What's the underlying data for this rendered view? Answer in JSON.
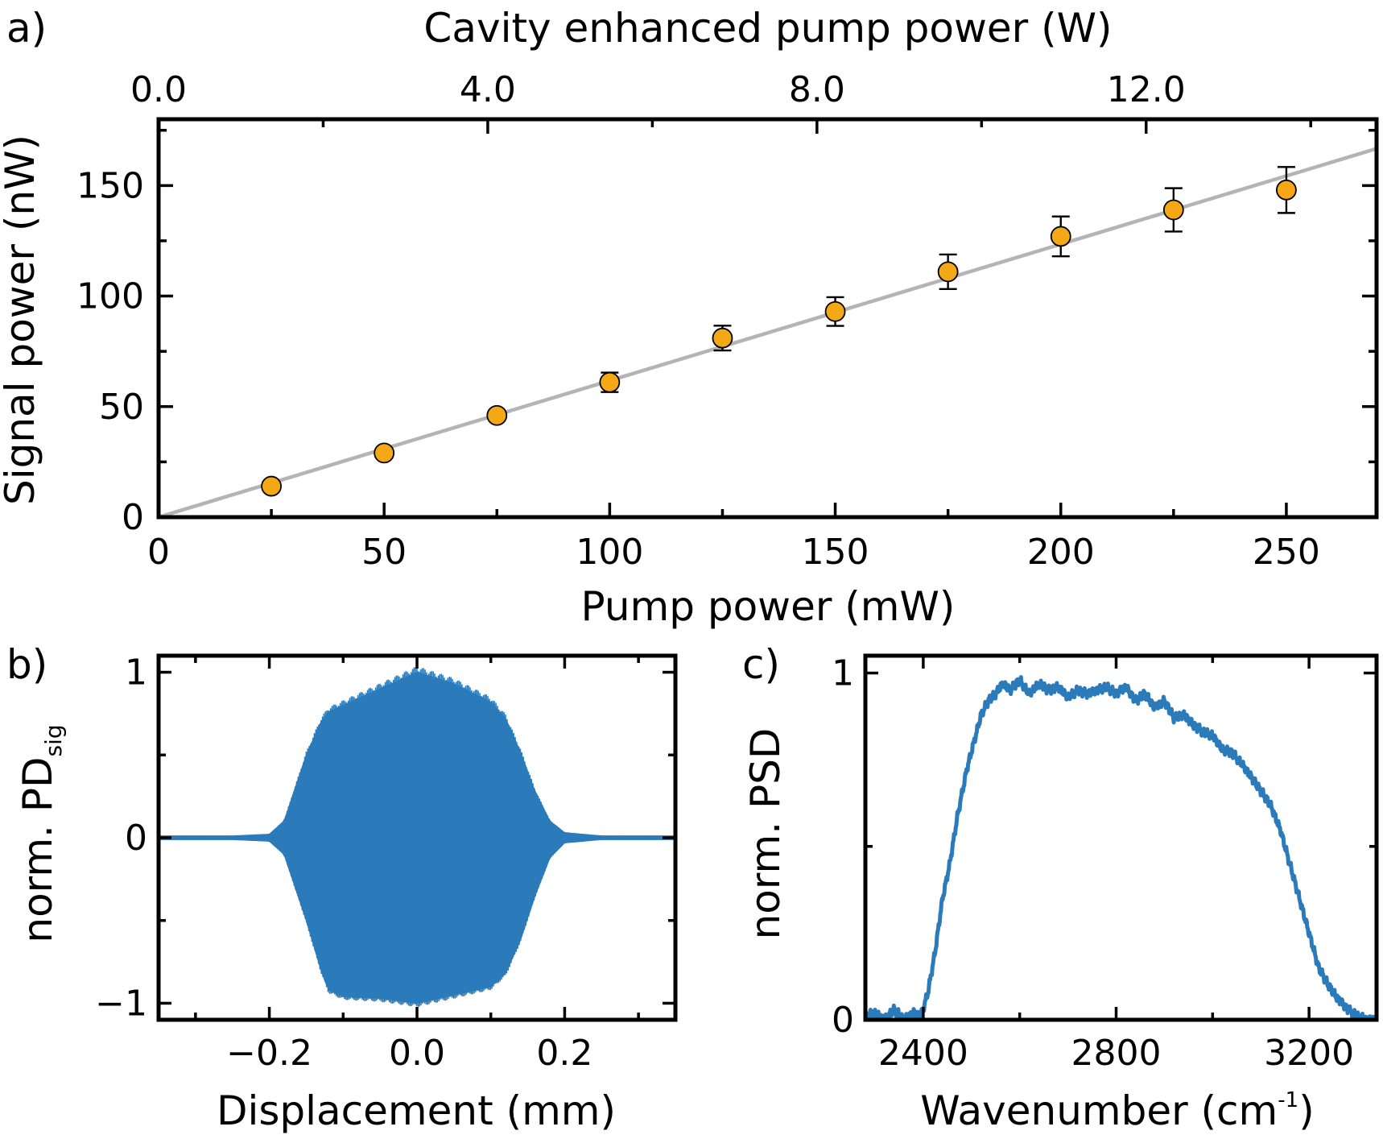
{
  "colors": {
    "marker": "#f5a816",
    "fit": "#b4b4b4",
    "trace": "#2b7bba",
    "axis": "#000000"
  },
  "chart_data": [
    {
      "panel": "a)",
      "type": "scatter",
      "title": "",
      "xlabel": "Pump power (mW)",
      "ylabel": "Signal power (nW)",
      "top_xlabel": "Cavity enhanced pump power (W)",
      "xlim": [
        0,
        270
      ],
      "ylim": [
        0,
        180
      ],
      "top_xlim": [
        0,
        14.8
      ],
      "x_ticks": [
        0,
        50,
        100,
        150,
        200,
        250
      ],
      "x_tick_labels": [
        "0",
        "50",
        "100",
        "150",
        "200",
        "250"
      ],
      "y_ticks": [
        0,
        50,
        100,
        150
      ],
      "y_tick_labels": [
        "0",
        "50",
        "100",
        "150"
      ],
      "top_ticks": [
        0,
        4,
        8,
        12
      ],
      "top_tick_labels": [
        "0.0",
        "4.0",
        "8.0",
        "12.0"
      ],
      "minor_x_ticks": [
        25,
        75,
        125,
        175,
        225
      ],
      "minor_y_ticks": [
        25,
        75,
        125,
        175
      ],
      "minor_top_ticks": [
        2,
        6,
        10,
        14
      ],
      "series": [
        {
          "name": "measured signal power",
          "x": [
            25,
            50,
            75,
            100,
            125,
            150,
            175,
            200,
            225,
            250
          ],
          "y": [
            14,
            29,
            46,
            61,
            81,
            93,
            111,
            127,
            139,
            148
          ],
          "yerr": [
            0,
            0,
            0,
            4.4,
            5.6,
            6.5,
            7.8,
            9.0,
            9.8,
            10.4
          ]
        },
        {
          "name": "linear fit",
          "type": "line",
          "x": [
            0,
            270
          ],
          "y": [
            0,
            166.7
          ]
        }
      ]
    },
    {
      "panel": "b)",
      "type": "line",
      "title": "",
      "xlabel": "Displacement (mm)",
      "ylabel_main": "norm. PD",
      "ylabel_sub": "sig",
      "xlim": [
        -0.35,
        0.35
      ],
      "ylim": [
        -1.1,
        1.1
      ],
      "x_ticks": [
        -0.2,
        0.0,
        0.2
      ],
      "x_tick_labels": [
        "−0.2",
        "0.0",
        "0.2"
      ],
      "y_ticks": [
        -1,
        0,
        1
      ],
      "y_tick_labels": [
        "−1",
        "0",
        "1"
      ],
      "minor_x_ticks": [
        -0.3,
        -0.1,
        0.1,
        0.3
      ],
      "minor_y_ticks": [
        -0.5,
        0.5
      ],
      "envelope": {
        "x": [
          -0.35,
          -0.25,
          -0.2,
          -0.18,
          -0.15,
          -0.13,
          -0.12,
          -0.1,
          -0.05,
          0.0,
          0.05,
          0.1,
          0.12,
          0.14,
          0.16,
          0.18,
          0.2,
          0.25,
          0.35
        ],
        "upper": [
          0.01,
          0.01,
          0.02,
          0.1,
          0.5,
          0.7,
          0.76,
          0.8,
          0.9,
          1.0,
          0.93,
          0.82,
          0.72,
          0.52,
          0.28,
          0.1,
          0.03,
          0.01,
          0.01
        ],
        "lower": [
          -0.01,
          -0.01,
          -0.02,
          -0.1,
          -0.5,
          -0.8,
          -0.92,
          -0.96,
          -0.97,
          -1.0,
          -0.95,
          -0.9,
          -0.82,
          -0.62,
          -0.35,
          -0.12,
          -0.03,
          -0.01,
          -0.01
        ]
      },
      "baseline_wobble": [
        [
          -0.2,
          0.02
        ],
        [
          0.18,
          0.015
        ]
      ]
    },
    {
      "panel": "c)",
      "type": "line",
      "title": "",
      "xlabel_main": "Wavenumber (cm",
      "xlabel_sup": "-1",
      "xlabel_close": ")",
      "ylabel": "norm. PSD",
      "xlim": [
        2280,
        3340
      ],
      "ylim": [
        0,
        1.05
      ],
      "x_ticks": [
        2400,
        2800,
        3200
      ],
      "x_tick_labels": [
        "2400",
        "2800",
        "3200"
      ],
      "y_ticks": [
        0,
        1
      ],
      "y_tick_labels": [
        "0",
        "1"
      ],
      "minor_x_ticks": [
        2600,
        3000
      ],
      "minor_y_ticks": [
        0.5
      ],
      "series": [
        {
          "name": "spectrum",
          "x": [
            2280,
            2300,
            2320,
            2340,
            2360,
            2380,
            2395,
            2410,
            2425,
            2440,
            2455,
            2470,
            2490,
            2505,
            2520,
            2535,
            2550,
            2565,
            2580,
            2600,
            2620,
            2640,
            2660,
            2680,
            2700,
            2720,
            2740,
            2760,
            2780,
            2800,
            2820,
            2840,
            2860,
            2880,
            2900,
            2920,
            2940,
            2960,
            2980,
            3000,
            3020,
            3040,
            3060,
            3080,
            3100,
            3120,
            3140,
            3160,
            3180,
            3200,
            3220,
            3240,
            3260,
            3280,
            3300,
            3320,
            3340
          ],
          "y": [
            0.01,
            0.02,
            0.0,
            0.03,
            0.0,
            0.02,
            0.01,
            0.08,
            0.2,
            0.35,
            0.45,
            0.58,
            0.72,
            0.8,
            0.88,
            0.92,
            0.94,
            0.97,
            0.95,
            0.98,
            0.94,
            0.97,
            0.95,
            0.96,
            0.93,
            0.95,
            0.94,
            0.95,
            0.96,
            0.94,
            0.96,
            0.92,
            0.94,
            0.9,
            0.92,
            0.87,
            0.88,
            0.85,
            0.83,
            0.82,
            0.78,
            0.77,
            0.74,
            0.7,
            0.66,
            0.62,
            0.55,
            0.45,
            0.35,
            0.25,
            0.15,
            0.1,
            0.06,
            0.03,
            0.01,
            0.0,
            0.0
          ]
        }
      ]
    }
  ]
}
